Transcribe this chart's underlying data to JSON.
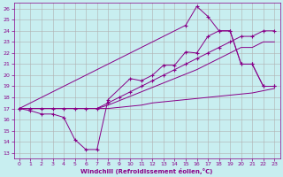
{
  "background_color": "#c8eef0",
  "grid_color": "#b0b0b0",
  "line_color": "#880088",
  "xlabel": "Windchill (Refroidissement éolien,°C)",
  "yticks": [
    13,
    14,
    15,
    16,
    17,
    18,
    19,
    20,
    21,
    22,
    23,
    24,
    25,
    26
  ],
  "xlim": [
    -0.5,
    23.5
  ],
  "ylim": [
    12.5,
    26.5
  ],
  "xticks": [
    0,
    1,
    2,
    3,
    4,
    5,
    6,
    7,
    8,
    9,
    10,
    11,
    12,
    13,
    14,
    15,
    16,
    17,
    18,
    19,
    20,
    21,
    22,
    23
  ],
  "line1_x": [
    0,
    1,
    2,
    3,
    4,
    5,
    6,
    7,
    8,
    9,
    10,
    11,
    12,
    13,
    14,
    15,
    16,
    17,
    18,
    19,
    20,
    21,
    22,
    23
  ],
  "line1_y": [
    17,
    16.8,
    16.5,
    16.5,
    16.2,
    14.2,
    13.3,
    13.3,
    17.8,
    null,
    19.7,
    19.5,
    20.0,
    20.9,
    20.9,
    22.1,
    22.0,
    23.5,
    24.0,
    24.0,
    21.0,
    21.0,
    19.0,
    19.0
  ],
  "line2_x": [
    0,
    1,
    2,
    3,
    4,
    5,
    6,
    7,
    8,
    9,
    10,
    11,
    12,
    13,
    14,
    15,
    16,
    17,
    18,
    19,
    20,
    21,
    22,
    23
  ],
  "line2_y": [
    17,
    17,
    17,
    17,
    17,
    17,
    17,
    17,
    17.5,
    18.0,
    18.5,
    19.0,
    19.5,
    20.0,
    20.5,
    21.0,
    21.5,
    22.0,
    22.5,
    23.0,
    23.5,
    23.5,
    24.0,
    24.0
  ],
  "line3_x": [
    0,
    1,
    2,
    3,
    4,
    5,
    6,
    7,
    8,
    9,
    10,
    11,
    12,
    13,
    14,
    15,
    16,
    17,
    18,
    19,
    20,
    21,
    22,
    23
  ],
  "line3_y": [
    17,
    17,
    17,
    17,
    17,
    17,
    17,
    17,
    17.3,
    17.7,
    18.1,
    18.5,
    18.9,
    19.3,
    19.7,
    20.1,
    20.5,
    21.0,
    21.5,
    22.0,
    22.5,
    22.5,
    23.0,
    23.0
  ],
  "line4_x": [
    0,
    1,
    2,
    3,
    4,
    5,
    6,
    7,
    8,
    9,
    10,
    11,
    12,
    13,
    14,
    15,
    16,
    17,
    18,
    19,
    20,
    21,
    22,
    23
  ],
  "line4_y": [
    17,
    17,
    17,
    17,
    17,
    17,
    17,
    17,
    17,
    17.1,
    17.2,
    17.3,
    17.5,
    17.6,
    17.7,
    17.8,
    17.9,
    18.0,
    18.1,
    18.2,
    18.3,
    18.4,
    18.6,
    18.8
  ],
  "line5_x": [
    0,
    15,
    16,
    17,
    18,
    19,
    20,
    21,
    22,
    23
  ],
  "line5_y": [
    17,
    24.5,
    26.2,
    25.3,
    24.0,
    24.0,
    21.0,
    21.0,
    19.0,
    19.0
  ]
}
